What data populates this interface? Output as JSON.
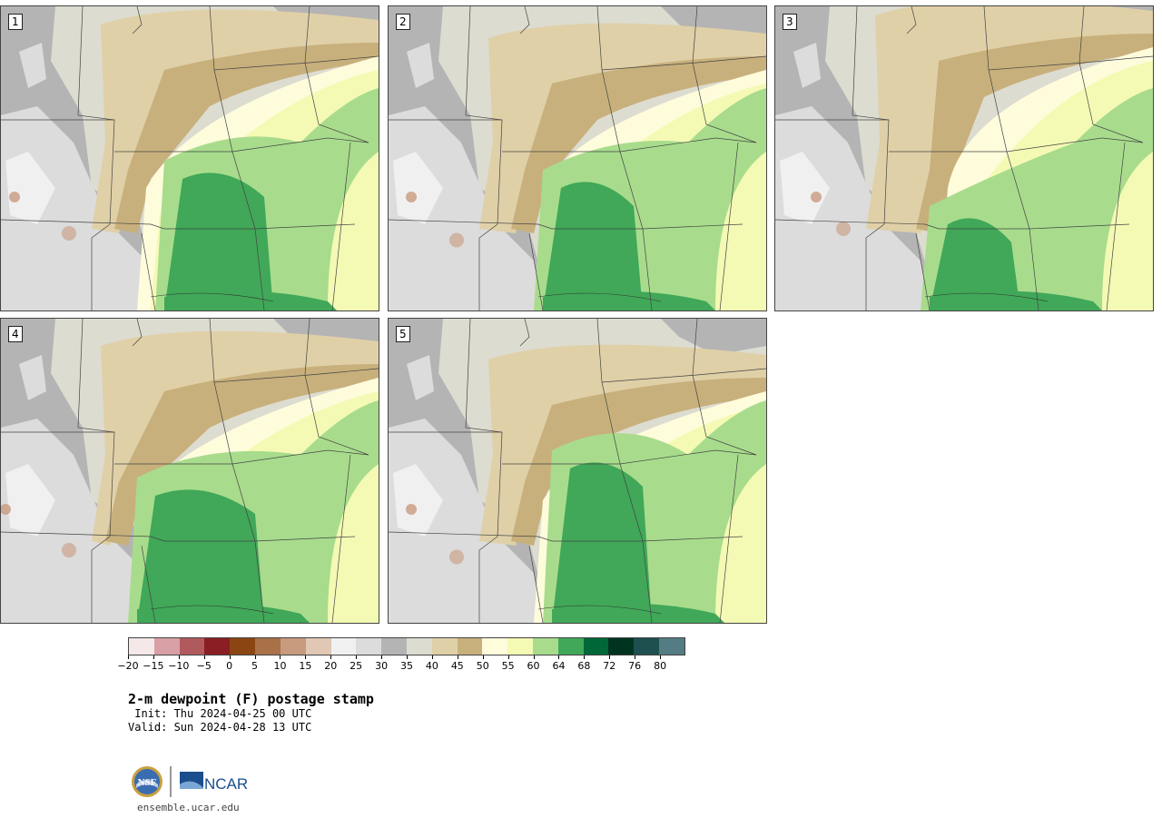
{
  "panels": [
    {
      "label": "1"
    },
    {
      "label": "2"
    },
    {
      "label": "3"
    },
    {
      "label": "4"
    },
    {
      "label": "5"
    }
  ],
  "colorbar": {
    "colors": [
      "#f4e8e8",
      "#d8a0a4",
      "#b05a5e",
      "#8a1e24",
      "#8b4513",
      "#a87148",
      "#c89a7e",
      "#e0c8b4",
      "#f0f0f0",
      "#dcdcdc",
      "#b4b4b4",
      "#dcdcd0",
      "#e0d0a8",
      "#c8b07c",
      "#fffcdc",
      "#f4fab4",
      "#a8dc8c",
      "#40a858",
      "#006838",
      "#003420",
      "#1e5050",
      "#547c84"
    ],
    "tick_labels": [
      "−20",
      "−15",
      "−10",
      "−5",
      "0",
      "5",
      "10",
      "15",
      "20",
      "25",
      "30",
      "35",
      "40",
      "45",
      "50",
      "55",
      "60",
      "64",
      "68",
      "72",
      "76",
      "80"
    ]
  },
  "title": "2-m dewpoint (F) postage stamp",
  "init": " Init: Thu 2024-04-25 00 UTC",
  "valid": "Valid: Sun 2024-04-28 13 UTC",
  "site": "ensemble.ucar.edu",
  "logo": {
    "nsf": "NSF",
    "ncar": "NCAR"
  }
}
